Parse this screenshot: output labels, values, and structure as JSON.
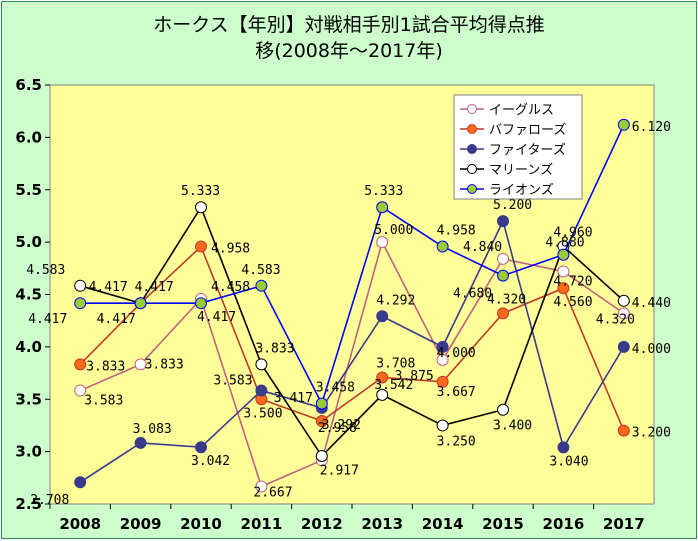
{
  "chart_data": {
    "type": "line",
    "title_line1": "ホークス【年別】対戦相手別1試合平均得点推",
    "title_line2": "移(2008年〜2017年)",
    "xlabel": "",
    "ylabel": "",
    "categories": [
      "2008",
      "2009",
      "2010",
      "2011",
      "2012",
      "2013",
      "2014",
      "2015",
      "2016",
      "2017"
    ],
    "ylim": [
      2.5,
      6.5
    ],
    "yticks": [
      "2.5",
      "3.0",
      "3.5",
      "4.0",
      "4.5",
      "5.0",
      "5.5",
      "6.0",
      "6.5"
    ],
    "grid": false,
    "legend_position": "top-right",
    "series": [
      {
        "name": "イーグルス",
        "values": [
          3.583,
          3.833,
          4.458,
          2.667,
          2.917,
          5.0,
          3.875,
          4.84,
          4.72,
          4.32
        ],
        "labels": [
          "3.583",
          "3.833",
          "4.458",
          "2.667",
          "2.917",
          "5.000",
          "3.875",
          "4.840",
          "4.720",
          "4.320"
        ],
        "line": "#c06080",
        "fill": "#ffffff"
      },
      {
        "name": "バファローズ",
        "values": [
          3.833,
          4.417,
          4.958,
          3.5,
          3.292,
          3.708,
          3.667,
          4.32,
          4.56,
          3.2
        ],
        "labels": [
          "3.833",
          "4.417",
          "4.958",
          "3.500",
          "3.292",
          "3.708",
          "3.667",
          "4.320",
          "4.560",
          "3.200"
        ],
        "line": "#c0392b",
        "fill": "#ff6a1a"
      },
      {
        "name": "ファイターズ",
        "values": [
          2.708,
          3.083,
          3.042,
          3.583,
          3.417,
          4.292,
          4.0,
          5.2,
          3.04,
          4.0
        ],
        "labels": [
          "2.708",
          "3.083",
          "3.042",
          "3.583",
          "3.417",
          "4.292",
          "4.000",
          "5.200",
          "3.040",
          "4.000"
        ],
        "line": "#3a3a8c",
        "fill": "#3a3a8c"
      },
      {
        "name": "マリーンズ",
        "values": [
          4.583,
          4.417,
          5.333,
          3.833,
          2.958,
          3.542,
          3.25,
          3.4,
          4.96,
          4.44
        ],
        "labels": [
          "4.583",
          "4.417",
          "5.333",
          "3.833",
          "2.958",
          "3.542",
          "3.250",
          "3.400",
          "4.960",
          "4.440"
        ],
        "line": "#000000",
        "fill": "#ffffff"
      },
      {
        "name": "ライオンズ",
        "values": [
          4.417,
          4.417,
          4.417,
          4.583,
          3.458,
          5.333,
          4.958,
          4.68,
          4.88,
          6.12
        ],
        "labels": [
          "4.417",
          "4.417",
          "4.417",
          "4.583",
          "3.458",
          "5.333",
          "4.958",
          "4.680",
          "4.880",
          "6.120"
        ],
        "line": "#0000ff",
        "fill": "#99cc33"
      }
    ]
  },
  "colors": {
    "background": "#ccffcc",
    "plot_area": "#ffff99",
    "border": "#2e8b57"
  }
}
